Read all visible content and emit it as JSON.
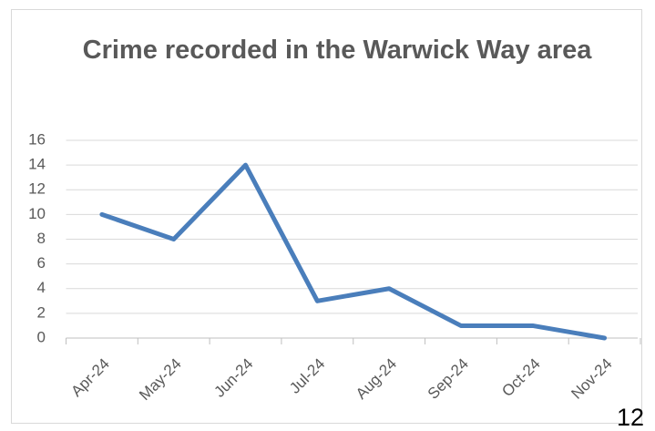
{
  "chart_data": {
    "type": "line",
    "title": "Crime recorded in the Warwick Way area",
    "categories": [
      "Apr-24",
      "May-24",
      "Jun-24",
      "Jul-24",
      "Aug-24",
      "Sep-24",
      "Oct-24",
      "Nov-24"
    ],
    "values": [
      10,
      8,
      14,
      3,
      4,
      1,
      1,
      0
    ],
    "color": "#4a7ebb",
    "ylim": [
      0,
      16
    ],
    "yticks": [
      0,
      2,
      4,
      6,
      8,
      10,
      12,
      14,
      16
    ],
    "grid": true
  },
  "page_number": "12"
}
